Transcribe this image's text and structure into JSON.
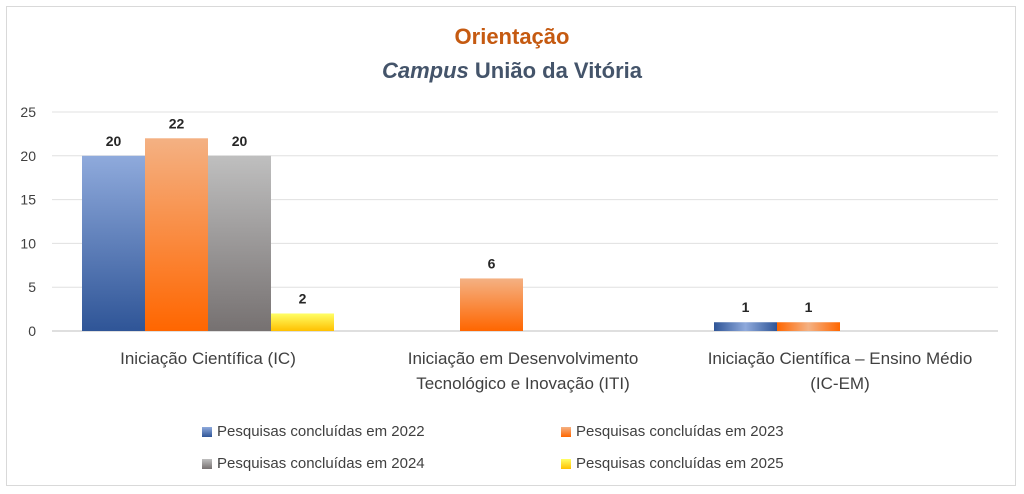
{
  "chart_data": {
    "type": "bar",
    "title_line1": "Orientação",
    "title_line2_italic": "Campus",
    "title_line2_rest": " União da Vitória",
    "categories": [
      [
        "Iniciação Científica (IC)"
      ],
      [
        "Iniciação em Desenvolvimento",
        "Tecnológico e Inovação (ITI)"
      ],
      [
        "Iniciação Científica – Ensino Médio",
        "(IC-EM)"
      ]
    ],
    "series": [
      {
        "name": "Pesquisas concluídas em 2022",
        "values": [
          20,
          null,
          1
        ],
        "color": "#2f5597",
        "light": "#8faadc"
      },
      {
        "name": "Pesquisas concluídas em 2023",
        "values": [
          22,
          6,
          1
        ],
        "color": "#ff6600",
        "light": "#f4b183"
      },
      {
        "name": "Pesquisas concluídas em 2024",
        "values": [
          20,
          null,
          null
        ],
        "color": "#767171",
        "light": "#bfbfbf"
      },
      {
        "name": "Pesquisas concluídas em 2025",
        "values": [
          2,
          null,
          null
        ],
        "color": "#ffc000",
        "light": "#ffff66"
      }
    ],
    "ylim": [
      0,
      25
    ],
    "yticks": [
      0,
      5,
      10,
      15,
      20,
      25
    ],
    "grid": true,
    "legend_position": "bottom"
  }
}
